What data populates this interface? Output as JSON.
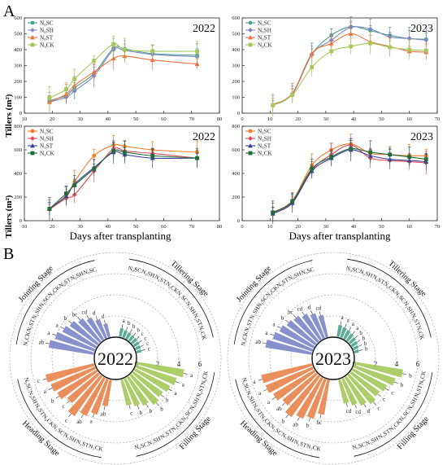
{
  "panel_labels": {
    "a": "A",
    "b": "B"
  },
  "shared": {
    "y_label": "Tillers (m²)",
    "x_label": "Days after transplanting",
    "colors": {
      "SC": "#4a9e8e",
      "SH": "#7f86c6",
      "ST": "#f0703c",
      "CK": "#a6c85a",
      "N1SC": "#f07c2a",
      "N1SH": "#e04a5a",
      "N1ST": "#3b3f9c",
      "N1CK": "#1f6b3a",
      "jointing": "#7b84c8",
      "tillering": "#4aa38c",
      "heading": "#e8834a",
      "filling": "#a4c65a"
    }
  },
  "chart_data": [
    {
      "type": "line",
      "id": "n0-2022",
      "year": "2022",
      "xlim": [
        10,
        80
      ],
      "ylim": [
        0,
        600
      ],
      "xticks": [
        10,
        20,
        30,
        40,
        50,
        60,
        70,
        80
      ],
      "yticks": [
        0,
        100,
        200,
        300,
        400,
        500,
        600
      ],
      "x": [
        19,
        25,
        28,
        35,
        42,
        46,
        56,
        72
      ],
      "series": [
        {
          "name": "N₀SC",
          "key": "SC",
          "values": [
            80,
            110,
            160,
            250,
            410,
            405,
            375,
            365
          ]
        },
        {
          "name": "N₀SH",
          "key": "SH",
          "values": [
            70,
            100,
            140,
            235,
            400,
            395,
            370,
            355
          ]
        },
        {
          "name": "N₀ST",
          "key": "ST",
          "values": [
            70,
            120,
            175,
            260,
            345,
            360,
            335,
            310
          ]
        },
        {
          "name": "N₀CK",
          "key": "CK",
          "values": [
            95,
            150,
            215,
            330,
            435,
            400,
            390,
            390
          ]
        }
      ]
    },
    {
      "type": "line",
      "id": "n0-2023",
      "year": "2023",
      "xlim": [
        0,
        70
      ],
      "ylim": [
        0,
        600
      ],
      "xticks": [
        0,
        10,
        20,
        30,
        40,
        50,
        60,
        70
      ],
      "yticks": [
        0,
        100,
        200,
        300,
        400,
        500,
        600
      ],
      "x": [
        11,
        18,
        25,
        32,
        39,
        46,
        53,
        60,
        66
      ],
      "series": [
        {
          "name": "N₀SC",
          "key": "SC",
          "values": [
            50,
            120,
            370,
            490,
            545,
            520,
            490,
            470,
            465
          ]
        },
        {
          "name": "N₀SH",
          "key": "SH",
          "values": [
            50,
            120,
            370,
            460,
            540,
            530,
            480,
            470,
            460
          ]
        },
        {
          "name": "N₀ST",
          "key": "ST",
          "values": [
            55,
            125,
            375,
            440,
            500,
            450,
            420,
            390,
            385
          ]
        },
        {
          "name": "N₀CK",
          "key": "CK",
          "values": [
            50,
            115,
            290,
            390,
            420,
            440,
            415,
            400,
            395
          ]
        }
      ]
    },
    {
      "type": "line",
      "id": "n1-2022",
      "year": "2022",
      "xlim": [
        10,
        80
      ],
      "ylim": [
        0,
        800
      ],
      "xticks": [
        10,
        20,
        30,
        40,
        50,
        60,
        70,
        80
      ],
      "yticks": [
        0,
        200,
        400,
        600,
        800
      ],
      "x": [
        19,
        25,
        28,
        35,
        42,
        46,
        56,
        72
      ],
      "series": [
        {
          "name": "N₁SC",
          "key": "N1SC",
          "values": [
            100,
            200,
            330,
            550,
            640,
            630,
            600,
            580
          ]
        },
        {
          "name": "N₁SH",
          "key": "N1SH",
          "values": [
            95,
            190,
            220,
            420,
            610,
            590,
            570,
            530
          ]
        },
        {
          "name": "N₁ST",
          "key": "N1ST",
          "values": [
            100,
            210,
            310,
            450,
            580,
            560,
            530,
            530
          ]
        },
        {
          "name": "N₁CK",
          "key": "N1CK",
          "values": [
            100,
            230,
            300,
            440,
            590,
            580,
            550,
            530
          ]
        }
      ]
    },
    {
      "type": "line",
      "id": "n1-2023",
      "year": "2023",
      "xlim": [
        0,
        70
      ],
      "ylim": [
        0,
        800
      ],
      "xticks": [
        0,
        10,
        20,
        30,
        40,
        50,
        60,
        70
      ],
      "yticks": [
        0,
        200,
        400,
        600,
        800
      ],
      "x": [
        11,
        18,
        25,
        32,
        39,
        46,
        53,
        60,
        66
      ],
      "series": [
        {
          "name": "N₁SC",
          "key": "N1SC",
          "values": [
            70,
            170,
            470,
            600,
            650,
            570,
            560,
            550,
            550
          ]
        },
        {
          "name": "N₁SH",
          "key": "N1SH",
          "values": [
            65,
            160,
            430,
            560,
            640,
            530,
            510,
            500,
            490
          ]
        },
        {
          "name": "N₁ST",
          "key": "N1ST",
          "values": [
            60,
            150,
            420,
            530,
            600,
            550,
            520,
            510,
            500
          ]
        },
        {
          "name": "N₁CK",
          "key": "N1CK",
          "values": [
            70,
            165,
            440,
            540,
            610,
            580,
            560,
            540,
            520
          ]
        }
      ]
    },
    {
      "type": "bar",
      "polar": true,
      "id": "radial-2022",
      "year": "2022",
      "rticks": [
        0,
        2,
        4,
        6
      ],
      "stages": [
        {
          "name": "Tillering Stage",
          "color_key": "tillering",
          "categories": [
            "N₀SC",
            "N₀SH",
            "N₀ST",
            "N₀CK",
            "N₁SC",
            "N₁SH",
            "N₁ST",
            "N₁CK"
          ],
          "values": [
            0.9,
            0.8,
            0.75,
            0.7,
            0.7,
            0.65,
            0.6,
            0.55
          ],
          "letters": [
            "a",
            "b",
            "b",
            "b",
            "c",
            "c",
            "c",
            "c"
          ]
        },
        {
          "name": "Filling Stage",
          "color_key": "filling",
          "categories": [
            "N₀CK",
            "N₀ST",
            "N₀SH",
            "N₀SC",
            "N₁CK",
            "N₁ST",
            "N₁SH",
            "N₁SC"
          ],
          "values": [
            4.6,
            4.1,
            3.8,
            3.5,
            3.7,
            3.2,
            2.9,
            2.6
          ],
          "letters": [
            "a",
            "a",
            "a",
            "b",
            "b",
            "b",
            "b",
            "c"
          ]
        },
        {
          "name": "Heading Stage",
          "color_key": "heading",
          "categories": [
            "N₁CK",
            "N₁ST",
            "N₁SH",
            "N₁SC",
            "N₀CK",
            "N₀ST",
            "N₀SH",
            "N₀SC"
          ],
          "values": [
            2.6,
            3.6,
            4.1,
            4.7,
            3.9,
            4.4,
            4.6,
            4.8
          ],
          "letters": [
            "ab",
            "a",
            "ab",
            "c",
            "c",
            "b",
            "a",
            "c"
          ]
        },
        {
          "name": "Jointing Stage",
          "color_key": "jointing",
          "categories": [
            "N₁CK",
            "N₁ST",
            "N₁SH",
            "N₁SC",
            "N₀CK",
            "N₀ST",
            "N₀SH",
            "N₀SC"
          ],
          "values": [
            4.4,
            4.0,
            3.6,
            3.3,
            2.9,
            2.5,
            2.0,
            1.4
          ],
          "letters": [
            "ab",
            "a",
            "a",
            "b",
            "bc",
            "cd",
            "d",
            "d"
          ]
        }
      ]
    },
    {
      "type": "bar",
      "polar": true,
      "id": "radial-2023",
      "year": "2023",
      "rticks": [
        0,
        2,
        4,
        6
      ],
      "stages": [
        {
          "name": "Tillering Stage",
          "color_key": "tillering",
          "categories": [
            "N₀SC",
            "N₀SH",
            "N₀ST",
            "N₀CK",
            "N₁SC",
            "N₁SH",
            "N₁ST",
            "N₁CK"
          ],
          "values": [
            1.2,
            1.1,
            1.0,
            0.9,
            0.8,
            0.7,
            0.6,
            0.5
          ],
          "letters": [
            "a",
            "a",
            "a",
            "a",
            "b",
            "b",
            "b",
            "b"
          ]
        },
        {
          "name": "Filling Stage",
          "color_key": "filling",
          "categories": [
            "N₀CK",
            "N₀ST",
            "N₀SH",
            "N₀SC",
            "N₁CK",
            "N₁ST",
            "N₁SH",
            "N₁SC"
          ],
          "values": [
            4.7,
            4.2,
            3.7,
            3.4,
            3.6,
            3.2,
            2.8,
            2.4
          ],
          "letters": [
            "b",
            "b",
            "c",
            "c",
            "c",
            "d",
            "cd",
            "cd"
          ]
        },
        {
          "name": "Heading Stage",
          "color_key": "heading",
          "categories": [
            "N₁CK",
            "N₁ST",
            "N₁SH",
            "N₁SC",
            "N₀CK",
            "N₀ST",
            "N₀SH",
            "N₀SC"
          ],
          "values": [
            3.4,
            4.0,
            4.4,
            4.8,
            4.2,
            4.6,
            4.9,
            5.0
          ],
          "letters": [
            "bc",
            "b",
            "ab",
            "b",
            "ab",
            "a",
            "a",
            "a"
          ]
        },
        {
          "name": "Jointing Stage",
          "color_key": "jointing",
          "categories": [
            "N₁CK",
            "N₁ST",
            "N₁SH",
            "N₁SC",
            "N₀CK",
            "N₀ST",
            "N₀SH",
            "N₀SC"
          ],
          "values": [
            4.5,
            4.0,
            3.7,
            3.4,
            3.2,
            2.9,
            2.6,
            2.2
          ],
          "letters": [
            "ab",
            "a",
            "a",
            "b",
            "bc",
            "cd",
            "d",
            "cd"
          ]
        }
      ]
    }
  ]
}
